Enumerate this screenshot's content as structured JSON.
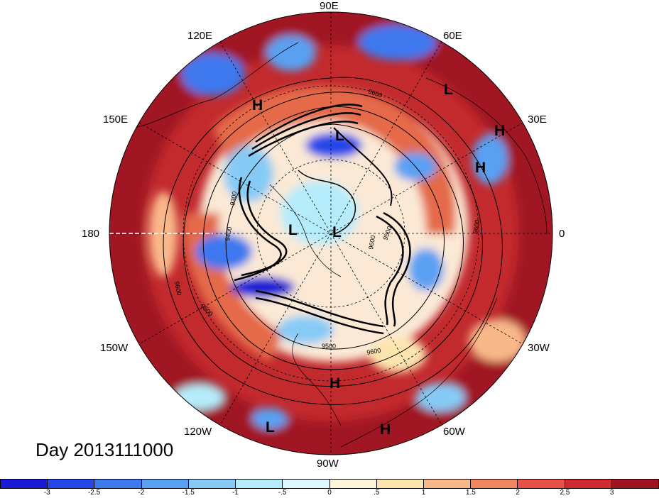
{
  "title": "Day 2013111000",
  "lon_labels": {
    "n": "90E",
    "ne1": "60E",
    "ne2": "30E",
    "e": "0",
    "se1": "30W",
    "se2": "60W",
    "s": "90W",
    "sw1": "120W",
    "sw2": "150W",
    "w": "180",
    "nw1": "150E",
    "nw2": "120E"
  },
  "pressure_centers": [
    {
      "type": "H",
      "name": "high-center-1"
    },
    {
      "type": "L",
      "name": "low-center-1"
    },
    {
      "type": "H",
      "name": "high-center-2"
    },
    {
      "type": "H",
      "name": "high-center-3"
    },
    {
      "type": "L",
      "name": "low-center-2"
    },
    {
      "type": "L",
      "name": "low-center-3"
    },
    {
      "type": "L",
      "name": "low-center-4"
    },
    {
      "type": "H",
      "name": "high-center-4"
    },
    {
      "type": "L",
      "name": "low-center-5"
    },
    {
      "type": "H",
      "name": "high-center-5"
    }
  ],
  "contour_labels": [
    "9600",
    "9300",
    "9400",
    "9500",
    "9600",
    "9500",
    "9600",
    "9600",
    "9600",
    "9500"
  ],
  "colorbar": {
    "colors": [
      "#1a1ad6",
      "#2546e8",
      "#3c78ee",
      "#5aa0f2",
      "#86cbf6",
      "#b5ecfb",
      "#def6fc",
      "#fdf6d8",
      "#fde5b0",
      "#f9b88a",
      "#f08660",
      "#e85048",
      "#d02a30",
      "#a01422"
    ],
    "ticks": [
      "-3",
      "-2.5",
      "-2",
      "-1.5",
      "-1",
      "-.5",
      "0",
      ".5",
      "1",
      "1.5",
      "2",
      "2.5",
      "3"
    ]
  }
}
